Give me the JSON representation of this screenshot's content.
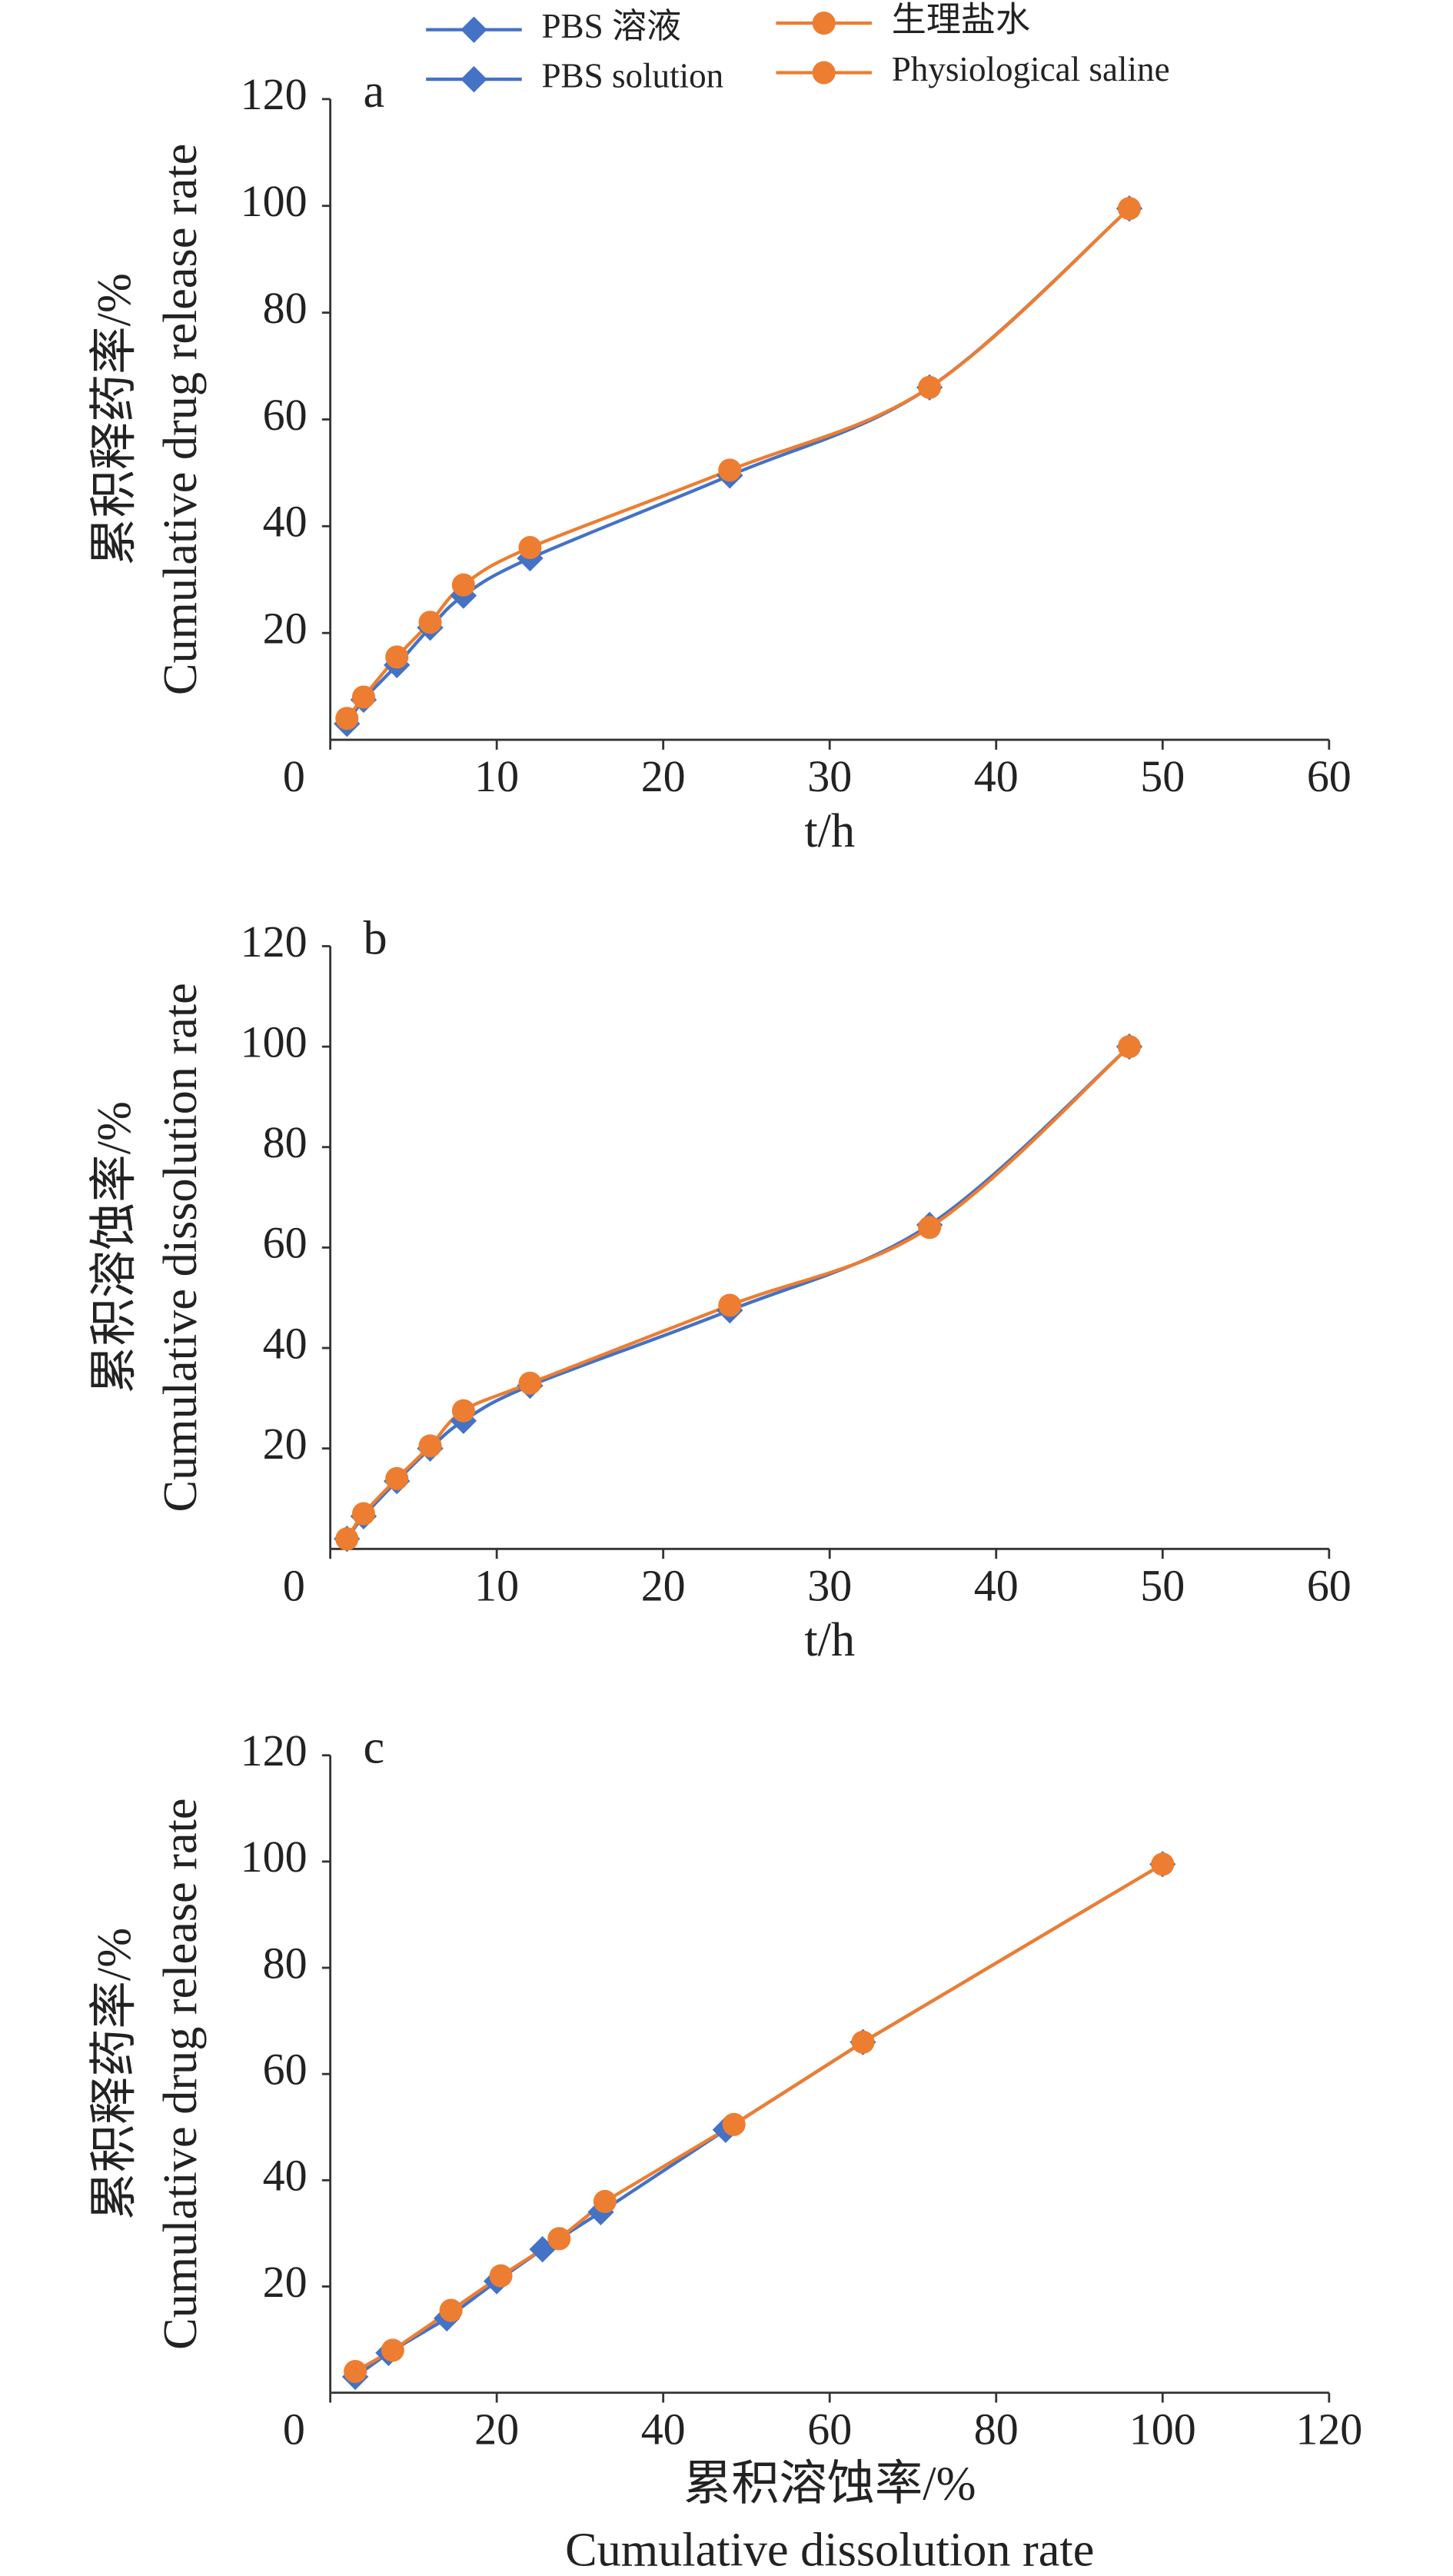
{
  "chart_data": [
    {
      "type": "line",
      "annotation": "a",
      "xlabel": [
        "t/h"
      ],
      "ylabel": [
        "累积释药率/%",
        "Cumulative drug release rate"
      ],
      "xlim": [
        0,
        60
      ],
      "xticks": [
        0,
        10,
        20,
        30,
        40,
        50,
        60
      ],
      "ylim": [
        0,
        120
      ],
      "yticks": [
        20,
        40,
        60,
        80,
        100,
        120
      ],
      "smooth": true,
      "legend": "top",
      "series": [
        {
          "name": [
            "PBS 溶液",
            "PBS solution"
          ],
          "color": "#4472c4",
          "marker": "diamond",
          "x": [
            1,
            2,
            4,
            6,
            8,
            12,
            24,
            36,
            48
          ],
          "values": [
            3,
            7.5,
            14,
            21,
            27,
            34,
            49.5,
            66,
            99.5
          ]
        },
        {
          "name": [
            "生理盐水",
            "Physiological saline"
          ],
          "color": "#ed7d31",
          "marker": "circle",
          "x": [
            1,
            2,
            4,
            6,
            8,
            12,
            24,
            36,
            48
          ],
          "values": [
            4,
            8,
            15.5,
            22,
            29,
            36,
            50.5,
            66,
            99.5
          ]
        }
      ]
    },
    {
      "type": "line",
      "annotation": "b",
      "xlabel": [
        "t/h"
      ],
      "ylabel": [
        "累积溶蚀率/%",
        "Cumulative dissolution rate"
      ],
      "xlim": [
        0,
        60
      ],
      "xticks": [
        0,
        10,
        20,
        30,
        40,
        50,
        60
      ],
      "ylim": [
        0,
        120
      ],
      "yticks": [
        20,
        40,
        60,
        80,
        100,
        120
      ],
      "smooth": true,
      "series": [
        {
          "color": "#4472c4",
          "marker": "diamond",
          "x": [
            1,
            2,
            4,
            6,
            8,
            12,
            24,
            36,
            48
          ],
          "values": [
            2,
            6.5,
            13.5,
            20,
            25.5,
            32.5,
            47.5,
            64.5,
            100
          ]
        },
        {
          "color": "#ed7d31",
          "marker": "circle",
          "x": [
            1,
            2,
            4,
            6,
            8,
            12,
            24,
            36,
            48
          ],
          "values": [
            2,
            7,
            14,
            20.5,
            27.5,
            33,
            48.5,
            64,
            100
          ]
        }
      ]
    },
    {
      "type": "line",
      "annotation": "c",
      "xlabel": [
        "累积溶蚀率/%",
        "Cumulative dissolution rate"
      ],
      "ylabel": [
        "累积释药率/%",
        "Cumulative drug release rate"
      ],
      "xlim": [
        0,
        120
      ],
      "xticks": [
        0,
        20,
        40,
        60,
        80,
        100,
        120
      ],
      "ylim": [
        0,
        120
      ],
      "yticks": [
        20,
        40,
        60,
        80,
        100,
        120
      ],
      "smooth": false,
      "series": [
        {
          "color": "#4472c4",
          "marker": "diamond",
          "x": [
            3,
            7,
            14,
            20,
            25.5,
            32.5,
            47.5,
            64,
            100
          ],
          "values": [
            3,
            7.5,
            14,
            21,
            27,
            34,
            49.5,
            66,
            99.5
          ]
        },
        {
          "color": "#ed7d31",
          "marker": "circle",
          "x": [
            3,
            7.5,
            14.5,
            20.5,
            27.5,
            33,
            48.5,
            64,
            100
          ],
          "values": [
            4,
            8,
            15.5,
            22,
            29,
            36,
            50.5,
            66,
            99.5
          ]
        }
      ]
    }
  ]
}
